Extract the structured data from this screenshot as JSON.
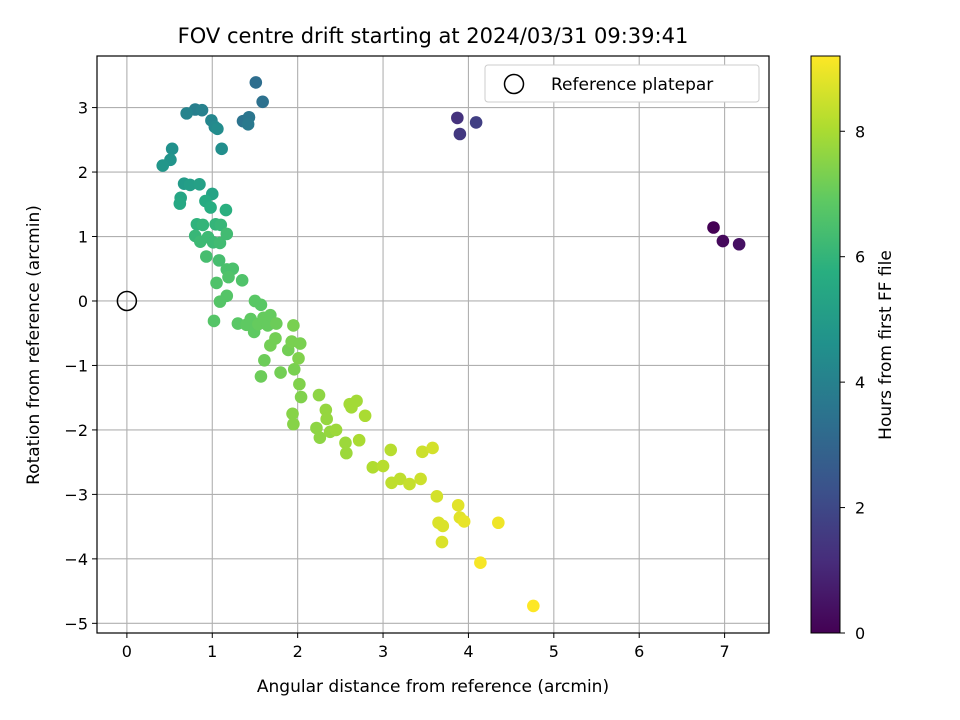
{
  "chart_data": {
    "type": "scatter",
    "title": "FOV centre drift starting at 2024/03/31 09:39:41",
    "xlabel": "Angular distance from reference (arcmin)",
    "ylabel": "Rotation from reference (arcmin)",
    "xlim": [
      -0.35,
      7.52
    ],
    "ylim": [
      -5.15,
      3.8
    ],
    "xticks": [
      0,
      1,
      2,
      3,
      4,
      5,
      6,
      7
    ],
    "yticks": [
      -5,
      -4,
      -3,
      -2,
      -1,
      0,
      1,
      2,
      3
    ],
    "grid": true,
    "legend": {
      "position": "top-right",
      "entries": [
        {
          "label": "Reference platepar",
          "marker": "open-circle"
        }
      ]
    },
    "reference_point": {
      "x": 0,
      "y": 0
    },
    "colorbar": {
      "label": "Hours from first FF file",
      "colormap": "viridis",
      "range": [
        0,
        9.2
      ],
      "ticks": [
        0,
        2,
        4,
        6,
        8
      ]
    },
    "series": [
      {
        "points": [
          {
            "x": 6.87,
            "y": 1.14,
            "t": 0.0
          },
          {
            "x": 6.98,
            "y": 0.93,
            "t": 0.2
          },
          {
            "x": 7.17,
            "y": 0.88,
            "t": 0.4
          },
          {
            "x": 3.87,
            "y": 2.84,
            "t": 1.3
          },
          {
            "x": 3.9,
            "y": 2.59,
            "t": 1.5
          },
          {
            "x": 4.09,
            "y": 2.77,
            "t": 1.7
          },
          {
            "x": 1.51,
            "y": 3.39,
            "t": 3.3
          },
          {
            "x": 1.59,
            "y": 3.09,
            "t": 3.4
          },
          {
            "x": 1.36,
            "y": 2.79,
            "t": 3.5
          },
          {
            "x": 1.43,
            "y": 2.85,
            "t": 3.6
          },
          {
            "x": 1.42,
            "y": 2.74,
            "t": 3.7
          },
          {
            "x": 0.8,
            "y": 2.97,
            "t": 3.9
          },
          {
            "x": 0.88,
            "y": 2.96,
            "t": 4.0
          },
          {
            "x": 0.7,
            "y": 2.91,
            "t": 4.1
          },
          {
            "x": 0.99,
            "y": 2.8,
            "t": 4.2
          },
          {
            "x": 1.03,
            "y": 2.7,
            "t": 4.3
          },
          {
            "x": 1.06,
            "y": 2.67,
            "t": 4.4
          },
          {
            "x": 1.11,
            "y": 2.36,
            "t": 4.5
          },
          {
            "x": 0.53,
            "y": 2.36,
            "t": 4.6
          },
          {
            "x": 0.51,
            "y": 2.19,
            "t": 4.7
          },
          {
            "x": 0.42,
            "y": 2.1,
            "t": 4.8
          },
          {
            "x": 0.67,
            "y": 1.82,
            "t": 5.0
          },
          {
            "x": 0.74,
            "y": 1.8,
            "t": 5.1
          },
          {
            "x": 0.85,
            "y": 1.81,
            "t": 5.2
          },
          {
            "x": 1.0,
            "y": 1.66,
            "t": 5.3
          },
          {
            "x": 0.63,
            "y": 1.6,
            "t": 5.4
          },
          {
            "x": 0.62,
            "y": 1.51,
            "t": 5.5
          },
          {
            "x": 0.92,
            "y": 1.55,
            "t": 5.6
          },
          {
            "x": 0.98,
            "y": 1.45,
            "t": 5.7
          },
          {
            "x": 1.16,
            "y": 1.41,
            "t": 5.8
          },
          {
            "x": 0.82,
            "y": 1.19,
            "t": 5.9
          },
          {
            "x": 0.89,
            "y": 1.18,
            "t": 6.0
          },
          {
            "x": 1.04,
            "y": 1.19,
            "t": 6.0
          },
          {
            "x": 1.1,
            "y": 1.18,
            "t": 6.1
          },
          {
            "x": 0.8,
            "y": 1.01,
            "t": 6.1
          },
          {
            "x": 0.86,
            "y": 0.92,
            "t": 6.2
          },
          {
            "x": 0.95,
            "y": 0.99,
            "t": 6.2
          },
          {
            "x": 1.01,
            "y": 0.91,
            "t": 6.2
          },
          {
            "x": 1.09,
            "y": 0.9,
            "t": 6.3
          },
          {
            "x": 1.17,
            "y": 1.04,
            "t": 6.3
          },
          {
            "x": 0.93,
            "y": 0.69,
            "t": 6.4
          },
          {
            "x": 1.08,
            "y": 0.63,
            "t": 6.4
          },
          {
            "x": 1.17,
            "y": 0.49,
            "t": 6.5
          },
          {
            "x": 1.24,
            "y": 0.5,
            "t": 6.5
          },
          {
            "x": 1.19,
            "y": 0.37,
            "t": 6.6
          },
          {
            "x": 1.35,
            "y": 0.32,
            "t": 6.6
          },
          {
            "x": 1.05,
            "y": 0.28,
            "t": 6.6
          },
          {
            "x": 1.17,
            "y": 0.08,
            "t": 6.7
          },
          {
            "x": 1.09,
            "y": -0.01,
            "t": 6.7
          },
          {
            "x": 1.02,
            "y": -0.31,
            "t": 6.7
          },
          {
            "x": 1.5,
            "y": 0.0,
            "t": 6.8
          },
          {
            "x": 1.57,
            "y": -0.06,
            "t": 6.8
          },
          {
            "x": 1.3,
            "y": -0.35,
            "t": 6.8
          },
          {
            "x": 1.4,
            "y": -0.37,
            "t": 6.9
          },
          {
            "x": 1.45,
            "y": -0.28,
            "t": 6.9
          },
          {
            "x": 1.49,
            "y": -0.48,
            "t": 6.9
          },
          {
            "x": 1.54,
            "y": -0.36,
            "t": 7.0
          },
          {
            "x": 1.6,
            "y": -0.26,
            "t": 7.0
          },
          {
            "x": 1.65,
            "y": -0.38,
            "t": 7.0
          },
          {
            "x": 1.68,
            "y": -0.22,
            "t": 7.0
          },
          {
            "x": 1.75,
            "y": -0.35,
            "t": 7.1
          },
          {
            "x": 1.61,
            "y": -0.92,
            "t": 7.1
          },
          {
            "x": 1.57,
            "y": -1.17,
            "t": 7.1
          },
          {
            "x": 1.68,
            "y": -0.69,
            "t": 7.2
          },
          {
            "x": 1.74,
            "y": -0.58,
            "t": 7.2
          },
          {
            "x": 1.8,
            "y": -1.11,
            "t": 7.2
          },
          {
            "x": 1.89,
            "y": -0.76,
            "t": 7.2
          },
          {
            "x": 1.93,
            "y": -0.63,
            "t": 7.3
          },
          {
            "x": 1.95,
            "y": -0.38,
            "t": 7.3
          },
          {
            "x": 2.03,
            "y": -0.66,
            "t": 7.3
          },
          {
            "x": 1.96,
            "y": -1.06,
            "t": 7.3
          },
          {
            "x": 2.01,
            "y": -0.89,
            "t": 7.4
          },
          {
            "x": 2.02,
            "y": -1.29,
            "t": 7.4
          },
          {
            "x": 2.04,
            "y": -1.49,
            "t": 7.4
          },
          {
            "x": 1.94,
            "y": -1.75,
            "t": 7.5
          },
          {
            "x": 1.95,
            "y": -1.91,
            "t": 7.5
          },
          {
            "x": 2.25,
            "y": -1.46,
            "t": 7.6
          },
          {
            "x": 2.22,
            "y": -1.97,
            "t": 7.6
          },
          {
            "x": 2.26,
            "y": -2.12,
            "t": 7.6
          },
          {
            "x": 2.33,
            "y": -1.69,
            "t": 7.7
          },
          {
            "x": 2.34,
            "y": -1.83,
            "t": 7.7
          },
          {
            "x": 2.38,
            "y": -2.03,
            "t": 7.7
          },
          {
            "x": 2.45,
            "y": -2.0,
            "t": 7.8
          },
          {
            "x": 2.56,
            "y": -2.2,
            "t": 7.8
          },
          {
            "x": 2.57,
            "y": -2.36,
            "t": 7.8
          },
          {
            "x": 2.61,
            "y": -1.6,
            "t": 7.9
          },
          {
            "x": 2.63,
            "y": -1.65,
            "t": 7.9
          },
          {
            "x": 2.69,
            "y": -1.55,
            "t": 7.9
          },
          {
            "x": 2.72,
            "y": -2.16,
            "t": 8.0
          },
          {
            "x": 2.79,
            "y": -1.78,
            "t": 8.0
          },
          {
            "x": 2.88,
            "y": -2.58,
            "t": 8.1
          },
          {
            "x": 3.0,
            "y": -2.56,
            "t": 8.2
          },
          {
            "x": 3.09,
            "y": -2.31,
            "t": 8.2
          },
          {
            "x": 3.1,
            "y": -2.82,
            "t": 8.3
          },
          {
            "x": 3.2,
            "y": -2.76,
            "t": 8.3
          },
          {
            "x": 3.31,
            "y": -2.84,
            "t": 8.4
          },
          {
            "x": 3.44,
            "y": -2.76,
            "t": 8.5
          },
          {
            "x": 3.46,
            "y": -2.34,
            "t": 8.5
          },
          {
            "x": 3.58,
            "y": -2.28,
            "t": 8.6
          },
          {
            "x": 3.63,
            "y": -3.03,
            "t": 8.6
          },
          {
            "x": 3.65,
            "y": -3.44,
            "t": 8.7
          },
          {
            "x": 3.7,
            "y": -3.49,
            "t": 8.7
          },
          {
            "x": 3.69,
            "y": -3.74,
            "t": 8.7
          },
          {
            "x": 3.88,
            "y": -3.17,
            "t": 8.8
          },
          {
            "x": 3.9,
            "y": -3.36,
            "t": 8.8
          },
          {
            "x": 3.95,
            "y": -3.42,
            "t": 8.9
          },
          {
            "x": 4.35,
            "y": -3.44,
            "t": 9.0
          },
          {
            "x": 4.14,
            "y": -4.06,
            "t": 9.1
          },
          {
            "x": 4.76,
            "y": -4.73,
            "t": 9.2
          }
        ]
      }
    ]
  }
}
